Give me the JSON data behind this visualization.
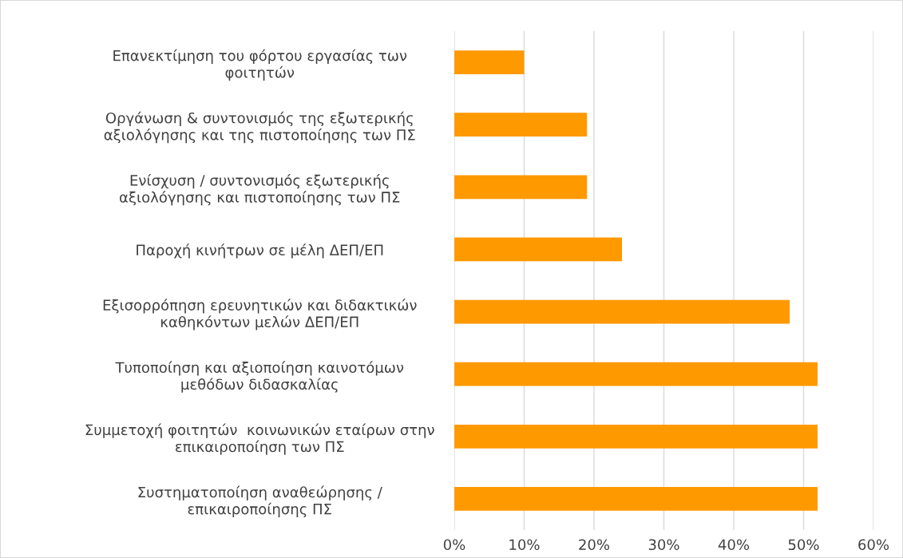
{
  "chart_data": {
    "type": "bar",
    "orientation": "horizontal",
    "categories": [
      "Επανεκτίμηση του φόρτου εργασίας των\nφοιτητών",
      "Οργάνωση & συντονισμός της εξωτερικής\nαξιολόγησης και της πιστοποίησης των ΠΣ",
      "Ενίσχυση / συντονισμός εξωτερικής\nαξιολόγησης και πιστοποίησης των ΠΣ",
      "Παροχή κινήτρων σε μέλη ΔΕΠ/ΕΠ",
      "Εξισορρόπηση ερευνητικών και διδακτικών\nκαθηκόντων μελών ΔΕΠ/ΕΠ",
      "Τυποποίηση και αξιοποίηση καινοτόμων\nμεθόδων διδασκαλίας",
      "Συμμετοχή φοιτητών  κοινωνικών εταίρων στην\nεπικαιροποίηση των ΠΣ",
      "Συστηματοποίηση αναθεώρησης /\nεπικαιροποίησης ΠΣ"
    ],
    "values": [
      10,
      19,
      19,
      24,
      48,
      52,
      52,
      52
    ],
    "color": "#ff9900",
    "xlim": [
      0,
      60
    ],
    "xticks": [
      {
        "value": 0,
        "label": "0%"
      },
      {
        "value": 10,
        "label": "10%"
      },
      {
        "value": 20,
        "label": "20%"
      },
      {
        "value": 30,
        "label": "30%"
      },
      {
        "value": 40,
        "label": "40%"
      },
      {
        "value": 50,
        "label": "50%"
      },
      {
        "value": 60,
        "label": "60%"
      }
    ],
    "grid": "x"
  }
}
